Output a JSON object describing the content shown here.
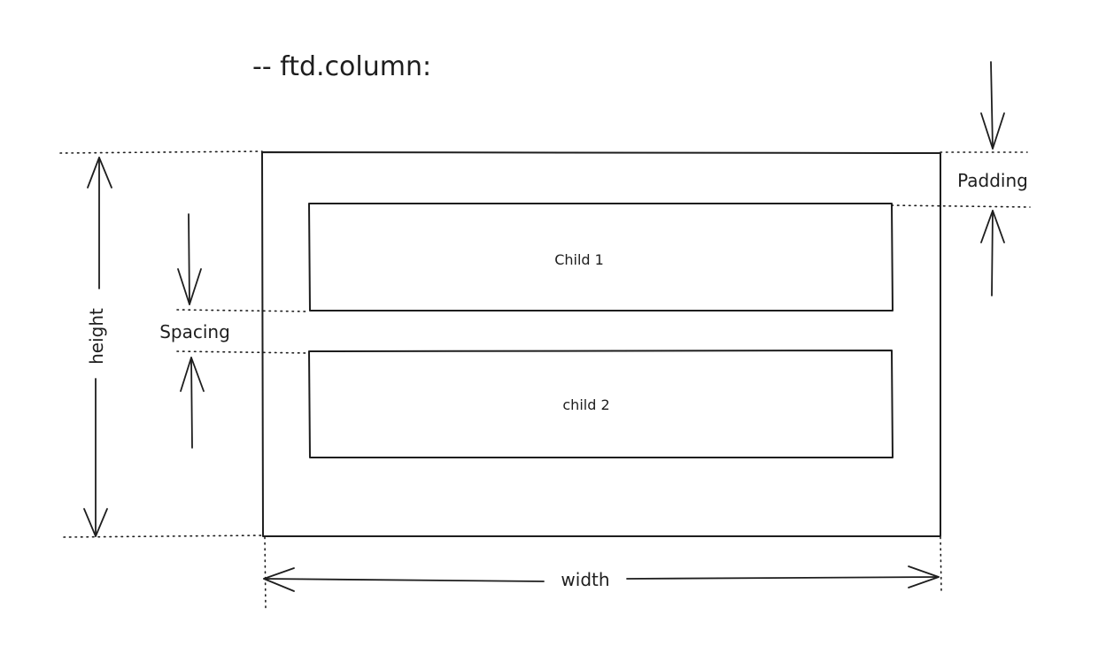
{
  "title": "-- ftd.column:",
  "children": [
    {
      "label": "Child 1"
    },
    {
      "label": "child 2"
    }
  ],
  "dimensions": {
    "height_label": "height",
    "width_label": "width",
    "spacing_label": "Spacing",
    "padding_label": "Padding"
  },
  "colors": {
    "ink": "#1e1e1e",
    "background": "#ffffff"
  }
}
